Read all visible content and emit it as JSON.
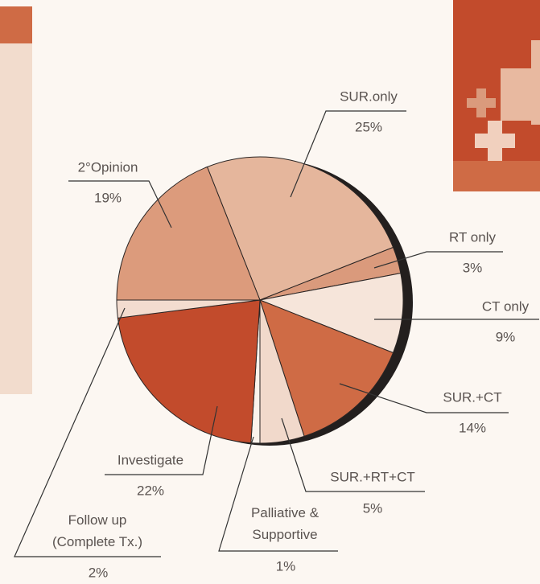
{
  "chart_data": {
    "type": "pie",
    "categories": [
      "SUR.only",
      "RT only",
      "CT only",
      "SUR.+CT",
      "SUR.+RT+CT",
      "Palliative & Supportive",
      "Investigate",
      "Follow up (Complete Tx.)",
      "2°Opinion"
    ],
    "values": [
      25,
      3,
      9,
      14,
      5,
      1,
      22,
      2,
      19
    ],
    "value_labels": [
      "25%",
      "3%",
      "9%",
      "14%",
      "5%",
      "1%",
      "22%",
      "2%",
      "19%"
    ],
    "colors": [
      "#e5b69c",
      "#da9a7c",
      "#f6e5da",
      "#cf6b45",
      "#f1d9cb",
      "#fbf3ec",
      "#c24b2c",
      "#f3dccf",
      "#dc9b7c"
    ]
  }
}
